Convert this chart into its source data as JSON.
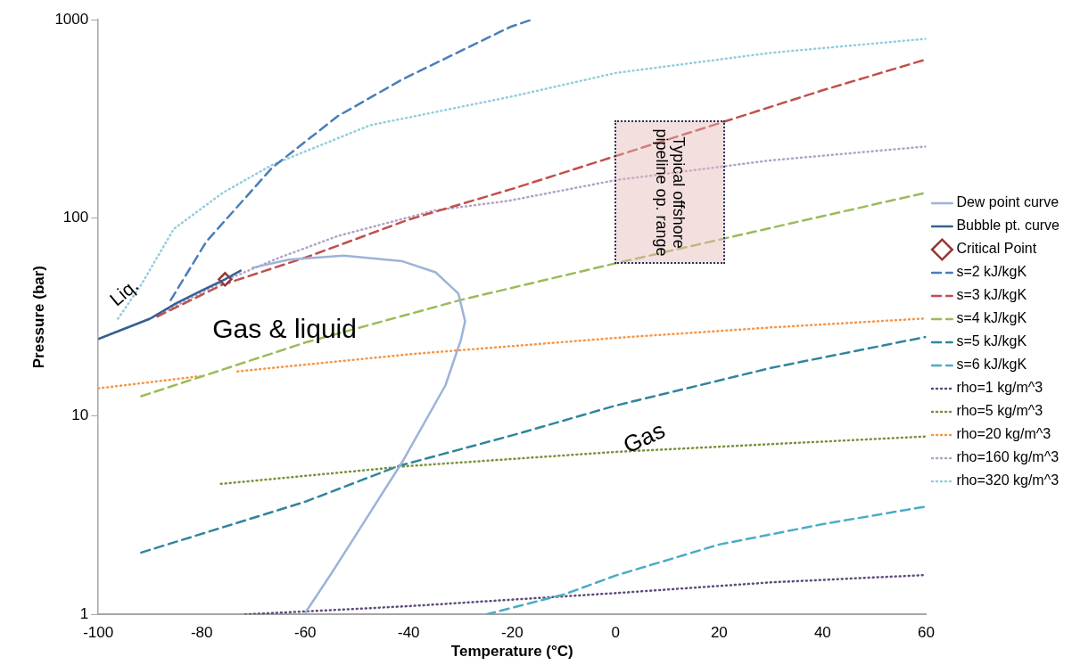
{
  "chart_data": {
    "type": "line",
    "xlabel": "Temperature (°C)",
    "ylabel": "Pressure (bar)",
    "log": "y",
    "xlim": [
      -100,
      60
    ],
    "xticks": [
      -100,
      -80,
      -60,
      -40,
      -20,
      0,
      20,
      40,
      60
    ],
    "ylim": [
      1,
      1000
    ],
    "yticks": [
      1,
      10,
      100,
      1000
    ],
    "grid": false,
    "legend": "right",
    "series": [
      {
        "name": "Dew point curve",
        "color": "#9db3d8",
        "line_style": "solid",
        "x": [
          -60.2,
          -55,
          -50.7,
          -41.2,
          -32.9,
          -29.9,
          -29.1,
          -30.4,
          -34.8,
          -41.2,
          -52.6,
          -63.2,
          -70.2
        ],
        "values": [
          1.0,
          1.6,
          2.4,
          5.9,
          14.3,
          24.3,
          30.1,
          41.5,
          53.1,
          60.4,
          64.5,
          61.6,
          56
        ]
      },
      {
        "name": "Bubble pt. curve",
        "color": "#376092",
        "line_style": "solid",
        "x": [
          -100,
          -90,
          -85,
          -80,
          -75.5,
          -72.5
        ],
        "values": [
          24.5,
          31,
          37,
          43,
          49,
          54.2
        ]
      },
      {
        "name": "Critical Point",
        "type": "scatter",
        "color": "#953735",
        "marker": "diamond",
        "x": [
          -75.5
        ],
        "values": [
          49
        ]
      },
      {
        "name": "s=2 kJ/kgK",
        "type": "line",
        "color": "#4a7ebb",
        "line_style": "dashed",
        "x": [
          -86,
          -79.1,
          -66.4,
          -53.7,
          -41.2,
          -20.4,
          -16.2
        ],
        "values": [
          38.5,
          76,
          179,
          326,
          500,
          918,
          1000
        ]
      },
      {
        "name": "s=3 kJ/kgK",
        "type": "line",
        "color": "#c0504d",
        "line_style": "dashed",
        "x": [
          -88.6,
          -76,
          -60,
          -40,
          -20,
          0,
          20,
          40,
          60
        ],
        "values": [
          31.8,
          46,
          63,
          98,
          140,
          205,
          300,
          440,
          630
        ]
      },
      {
        "name": "s=4 kJ/kgK",
        "type": "line",
        "color": "#9bbb59",
        "line_style": "dashed",
        "x": [
          -91.7,
          -60,
          -30,
          0,
          30,
          60
        ],
        "values": [
          12.6,
          23.5,
          38.5,
          59,
          89,
          134
        ]
      },
      {
        "name": "s=5 kJ/kgK",
        "type": "line",
        "color": "#31859c",
        "line_style": "dashed",
        "x": [
          -91.7,
          -60,
          -42,
          -20,
          0,
          30,
          60
        ],
        "values": [
          2.05,
          3.7,
          5.6,
          8.0,
          11.3,
          17.5,
          25.1
        ]
      },
      {
        "name": "s=6 kJ/kgK",
        "type": "line",
        "color": "#4bacc6",
        "line_style": "dashed",
        "x": [
          -25,
          -10,
          0,
          20,
          40,
          60
        ],
        "values": [
          1,
          1.26,
          1.57,
          2.25,
          2.85,
          3.5
        ]
      },
      {
        "name": "rho=1 kg/m^3",
        "type": "line",
        "color": "#604a7b",
        "line_style": "dotted",
        "x": [
          -71.6,
          -40,
          0,
          30,
          60
        ],
        "values": [
          1,
          1.1,
          1.28,
          1.45,
          1.58
        ]
      },
      {
        "name": "rho=5 kg/m^3",
        "type": "line",
        "color": "#77933c",
        "line_style": "dotted",
        "x": [
          -76.3,
          -40,
          0,
          60
        ],
        "values": [
          4.55,
          5.6,
          6.6,
          7.9
        ]
      },
      {
        "name": "rho=20 kg/m^3",
        "type": "line",
        "color": "#f79646",
        "line_style": "dotted",
        "x": [
          -100,
          -80.3,
          -77,
          -73.1,
          -40,
          0,
          30,
          60
        ],
        "values": [
          13.8,
          15.9,
          null,
          16.8,
          20.5,
          24.8,
          28,
          31.1
        ]
      },
      {
        "name": "rho=160 kg/m^3",
        "type": "line",
        "color": "#b3a2c7",
        "line_style": "dotted",
        "x": [
          -100,
          -90,
          -80,
          -75,
          -65,
          -53.7,
          -35,
          -20.6,
          0,
          30,
          60
        ],
        "values": [
          24.5,
          31,
          42,
          49,
          63,
          81,
          109,
          122,
          155,
          195,
          229
        ]
      },
      {
        "name": "rho=320 kg/m^3",
        "type": "line",
        "color": "#93cddd",
        "line_style": "dotted",
        "x": [
          -96.2,
          -91.7,
          -85.4,
          -75.9,
          -66.4,
          -47.5,
          -19.6,
          0,
          30,
          60
        ],
        "values": [
          31,
          46,
          88,
          134,
          185,
          293,
          412,
          538,
          680,
          800
        ]
      }
    ],
    "annotations": [
      "Liq.",
      "Gas & liquid",
      "Gas",
      "Typical offshore pipeline op. range"
    ]
  }
}
